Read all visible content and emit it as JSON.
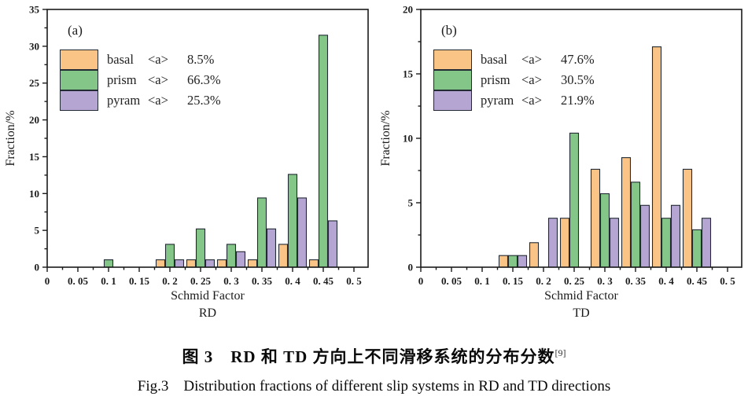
{
  "figure": {
    "caption_zh": "图 3　RD 和 TD 方向上不同滑移系统的分布分数",
    "caption_zh_sup": "[9]",
    "caption_en": "Fig.3　Distribution fractions of different slip systems in RD and TD directions"
  },
  "chart_data": [
    {
      "type": "bar",
      "panel_label": "(a)",
      "xlabel": "Schmid Factor",
      "direction_label": "RD",
      "ylabel": "Fraction/%",
      "xlim": [
        0,
        0.5
      ],
      "ylim": [
        0,
        35
      ],
      "grid": false,
      "legend_position": "upper-left",
      "x_tick_values": [
        0,
        0.05,
        0.1,
        0.15,
        0.2,
        0.25,
        0.3,
        0.35,
        0.4,
        0.45,
        0.5
      ],
      "x_tick_labels": [
        "0",
        "0. 05",
        "0. 1",
        "0. 15",
        "0. 2",
        "0. 25",
        "0. 3",
        "0. 35",
        "0. 4",
        "0. 45",
        "0. 5"
      ],
      "y_tick_values": [
        0,
        5,
        10,
        15,
        20,
        25,
        30,
        35
      ],
      "y_minor_step": 2.5,
      "categories": [
        0.1,
        0.2,
        0.25,
        0.3,
        0.35,
        0.4,
        0.45
      ],
      "series": [
        {
          "name": "basal",
          "bracket": "<a>",
          "pct": "8.5%",
          "color": "#F9C485",
          "values": [
            0,
            1.0,
            1.0,
            1.0,
            1.0,
            3.1,
            1.0
          ]
        },
        {
          "name": "prism",
          "bracket": "<a>",
          "pct": "66.3%",
          "color": "#83C687",
          "values": [
            1.0,
            3.1,
            5.2,
            3.1,
            9.4,
            12.6,
            31.5
          ]
        },
        {
          "name": "pyram",
          "bracket": "<a>",
          "pct": "25.3%",
          "color": "#B4A5D3",
          "values": [
            0,
            1.0,
            1.0,
            2.1,
            5.2,
            9.4,
            6.3
          ]
        }
      ]
    },
    {
      "type": "bar",
      "panel_label": "(b)",
      "xlabel": "Schmid Factor",
      "direction_label": "TD",
      "ylabel": "Fraction/%",
      "xlim": [
        0,
        0.5
      ],
      "ylim": [
        0,
        20
      ],
      "grid": false,
      "legend_position": "upper-left",
      "x_tick_values": [
        0,
        0.05,
        0.1,
        0.15,
        0.2,
        0.25,
        0.3,
        0.35,
        0.4,
        0.45,
        0.5
      ],
      "x_tick_labels": [
        "0",
        "0. 05",
        "0. 1",
        "0. 15",
        "0. 2",
        "0. 25",
        "0. 3",
        "0. 35",
        "0. 4",
        "0. 45",
        "0. 5"
      ],
      "y_tick_values": [
        0,
        5,
        10,
        15,
        20
      ],
      "y_minor_step": 2.5,
      "categories": [
        0.15,
        0.2,
        0.25,
        0.3,
        0.35,
        0.4,
        0.45
      ],
      "series": [
        {
          "name": "basal",
          "bracket": "<a>",
          "pct": "47.6%",
          "color": "#F9C485",
          "values": [
            0.9,
            1.9,
            3.8,
            7.6,
            8.5,
            17.1,
            7.6
          ]
        },
        {
          "name": "prism",
          "bracket": "<a>",
          "pct": "30.5%",
          "color": "#83C687",
          "values": [
            0.9,
            0,
            10.4,
            5.7,
            6.6,
            3.8,
            2.9
          ]
        },
        {
          "name": "pyram",
          "bracket": "<a>",
          "pct": "21.9%",
          "color": "#B4A5D3",
          "values": [
            0.9,
            3.8,
            0,
            3.8,
            4.8,
            4.8,
            3.8
          ]
        }
      ]
    }
  ]
}
